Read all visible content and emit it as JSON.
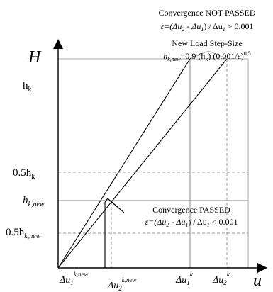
{
  "annotations": {
    "fail_title": "Convergence NOT PASSED",
    "fail_formula_lhs": "ε=(Δu",
    "fail_formula_mid1": " - Δu",
    "fail_formula_mid2": ") / Δu",
    "fail_formula_rhs": " > 0.001",
    "new_step_title": "New Load Step-Size",
    "new_step_h": "h",
    "new_step_sub": "k,new",
    "new_step_eq": "=0.9 (h",
    "new_step_k": "k",
    "new_step_tail": ") (0.001/ε)",
    "new_step_exp": "0.5",
    "pass_title": "Convergence PASSED",
    "pass_formula_lhs": "ε=(Δu",
    "pass_formula_mid1": " - Δu",
    "pass_formula_mid2": ") / Δu",
    "pass_formula_rhs": " < 0.001"
  },
  "axes": {
    "y_label": "H",
    "x_label": "u"
  },
  "y_ticks": {
    "hk": "h",
    "hk_sub": "k",
    "half_hk": "0.5h",
    "half_hk_sub": "k",
    "hknew": "h",
    "hknew_sub": "k,new",
    "half_hknew": "0.5h",
    "half_hknew_sub": "k,new"
  },
  "x_ticks": {
    "du1_new": "Δu",
    "du1_new_sub": "1",
    "du1_new_sup": "k,new",
    "du2_new": "Δu",
    "du2_new_sub": "2",
    "du2_new_sup": "k,new",
    "du1_k": "Δu",
    "du1_k_sub": "1",
    "du1_k_sup": "k",
    "du2_k": "Δu",
    "du2_k_sub": "2",
    "du2_k_sup": "k"
  },
  "subscripts": {
    "two": "2",
    "one": "1"
  }
}
